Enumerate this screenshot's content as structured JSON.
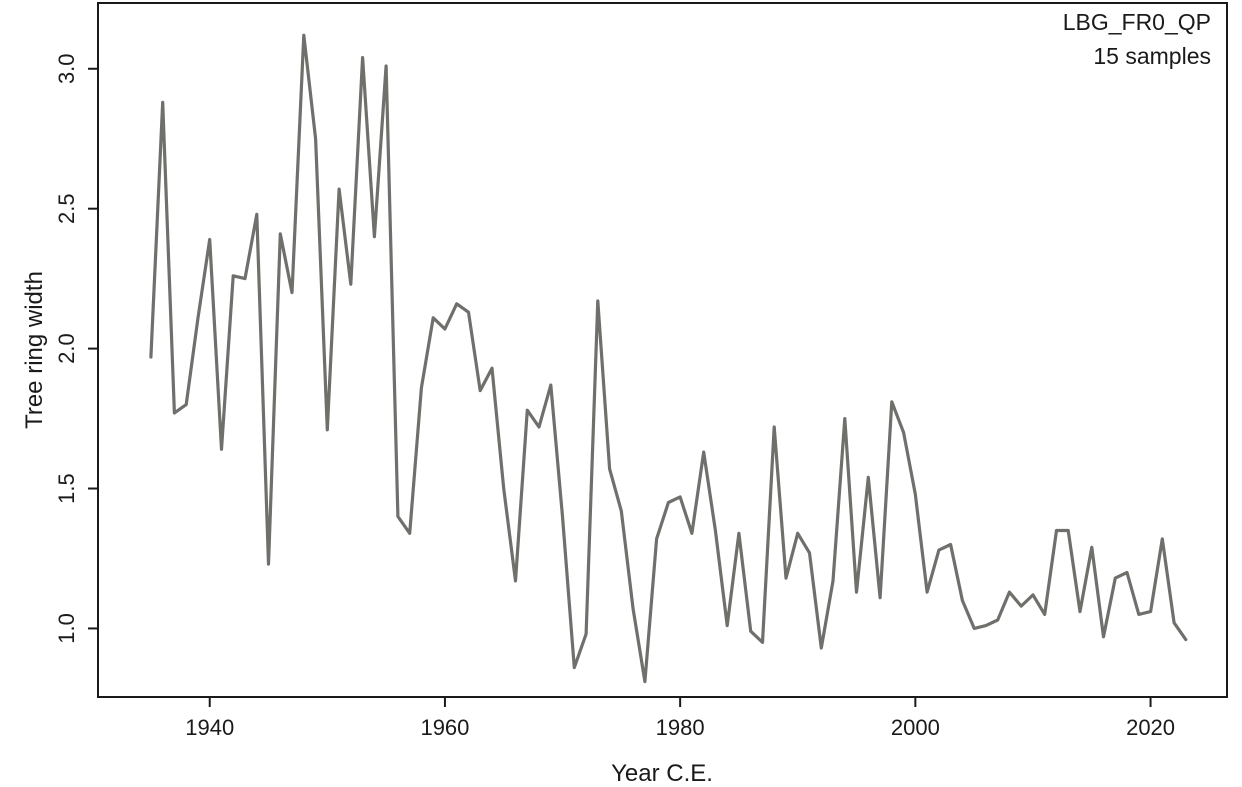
{
  "chart_data": {
    "type": "line",
    "xlabel": "Year C.E.",
    "ylabel": "Tree ring width",
    "annotation": [
      "LBG_FR0_QP",
      "15 samples"
    ],
    "xlim": [
      1930.5,
      2026.5
    ],
    "ylim": [
      0.755,
      3.235
    ],
    "xticks": [
      1940,
      1960,
      1980,
      2000,
      2020
    ],
    "yticks": [
      1.0,
      1.5,
      2.0,
      2.5,
      3.0
    ],
    "ytick_labels": [
      "1.0",
      "1.5",
      "2.0",
      "2.5",
      "3.0"
    ],
    "grid": false,
    "line_color": "#6f706b",
    "series": [
      {
        "x": [
          1935,
          1936,
          1937,
          1938,
          1939,
          1940,
          1941,
          1942,
          1943,
          1944,
          1945,
          1946,
          1947,
          1948,
          1949,
          1950,
          1951,
          1952,
          1953,
          1954,
          1955,
          1956,
          1957,
          1958,
          1959,
          1960,
          1961,
          1962,
          1963,
          1964,
          1965,
          1966,
          1967,
          1968,
          1969,
          1970,
          1971,
          1972,
          1973,
          1974,
          1975,
          1976,
          1977,
          1978,
          1979,
          1980,
          1981,
          1982,
          1983,
          1984,
          1985,
          1986,
          1987,
          1988,
          1989,
          1990,
          1991,
          1992,
          1993,
          1994,
          1995,
          1996,
          1997,
          1998,
          1999,
          2000,
          2001,
          2002,
          2003,
          2004,
          2005,
          2006,
          2007,
          2008,
          2009,
          2010,
          2011,
          2012,
          2013,
          2014,
          2015,
          2016,
          2017,
          2018,
          2019,
          2020,
          2021,
          2022,
          2023
        ],
        "values": [
          1.97,
          2.88,
          1.77,
          1.8,
          2.11,
          2.39,
          1.64,
          2.26,
          2.25,
          2.48,
          1.23,
          2.41,
          2.2,
          3.12,
          2.75,
          1.71,
          2.57,
          2.23,
          3.04,
          2.4,
          3.01,
          1.4,
          1.34,
          1.86,
          2.11,
          2.07,
          2.16,
          2.13,
          1.85,
          1.93,
          1.5,
          1.17,
          1.78,
          1.72,
          1.87,
          1.4,
          0.86,
          0.98,
          2.17,
          1.57,
          1.42,
          1.07,
          0.81,
          1.32,
          1.45,
          1.47,
          1.34,
          1.63,
          1.35,
          1.01,
          1.34,
          0.99,
          0.95,
          1.72,
          1.18,
          1.34,
          1.27,
          0.93,
          1.17,
          1.75,
          1.13,
          1.54,
          1.11,
          1.81,
          1.7,
          1.48,
          1.13,
          1.28,
          1.3,
          1.1,
          1.0,
          1.01,
          1.03,
          1.13,
          1.08,
          1.12,
          1.05,
          1.35,
          1.35,
          1.06,
          1.29,
          0.97,
          1.18,
          1.2,
          1.05,
          1.06,
          1.32,
          1.02,
          0.96
        ]
      }
    ]
  }
}
